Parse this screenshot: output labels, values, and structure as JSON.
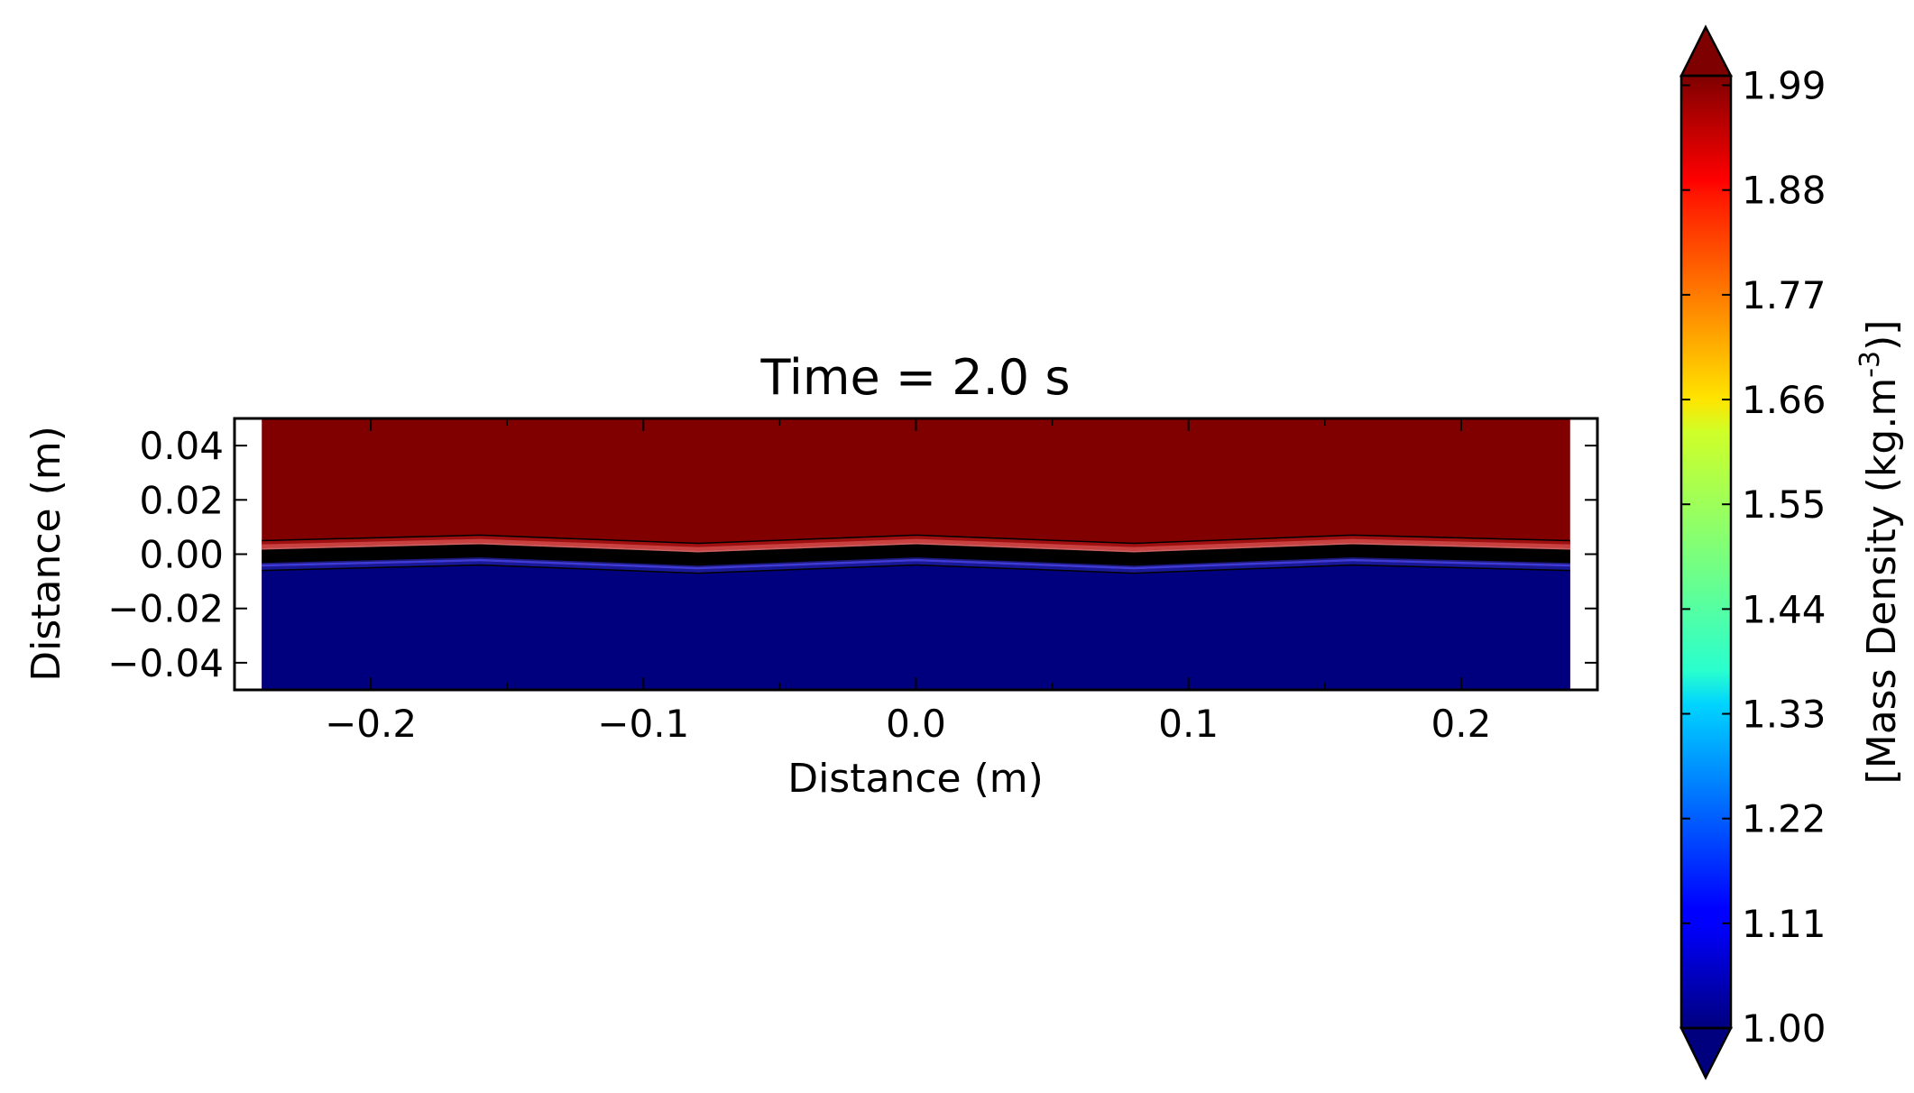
{
  "chart_data": {
    "type": "heatmap",
    "subtype": "filled-contour",
    "title": "Time = 2.0 s",
    "xlabel": "Distance (m)",
    "ylabel": "Distance (m)",
    "xlim": [
      -0.25,
      0.25
    ],
    "ylim": [
      -0.05,
      0.05
    ],
    "data_extent": {
      "x": [
        -0.24,
        0.24
      ],
      "y": [
        -0.05,
        0.05
      ]
    },
    "x_ticks": [
      -0.2,
      -0.1,
      0.0,
      0.1,
      0.2
    ],
    "x_tick_labels": [
      "−0.2",
      "−0.1",
      "0.0",
      "0.1",
      "0.2"
    ],
    "y_ticks": [
      0.04,
      0.02,
      0.0,
      -0.02,
      -0.04
    ],
    "y_tick_labels": [
      "0.04",
      "0.02",
      "0.00",
      "−0.02",
      "−0.04"
    ],
    "fields": {
      "upper_value": 2.0,
      "lower_value": 1.0,
      "interface_x": [
        -0.24,
        -0.16,
        -0.08,
        0.0,
        0.08,
        0.16,
        0.24
      ],
      "interface_y": [
        -0.0005,
        0.0015,
        -0.0015,
        0.0015,
        -0.0015,
        0.0015,
        -0.0005
      ],
      "interface_thickness": 0.011
    },
    "colorbar": {
      "label": "[Mass Density (kg.m",
      "label_sup": "-3",
      "label_end": ")]",
      "colormap": "jet",
      "range": [
        1.0,
        2.0
      ],
      "extend": "both",
      "ticks": [
        1.99,
        1.88,
        1.77,
        1.66,
        1.55,
        1.44,
        1.33,
        1.22,
        1.11,
        1.0
      ],
      "tick_labels": [
        "1.99",
        "1.88",
        "1.77",
        "1.66",
        "1.55",
        "1.44",
        "1.33",
        "1.22",
        "1.11",
        "1.00"
      ]
    },
    "grid": false,
    "colors": {
      "high": "#800000",
      "low": "#00007f",
      "interface_band": "#000000"
    }
  }
}
